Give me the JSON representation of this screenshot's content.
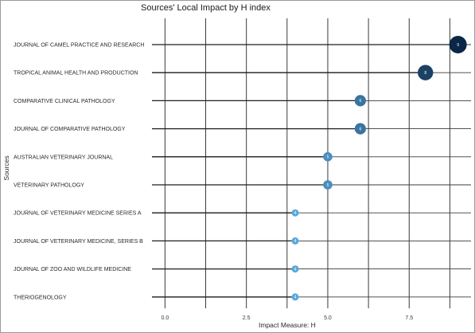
{
  "chart_data": {
    "type": "scatter",
    "title": "Sources' Local Impact by H index",
    "xlabel": "Impact Measure: H",
    "ylabel": "Sources",
    "xlim": [
      -0.4,
      9.4
    ],
    "xticks": [
      0.0,
      2.5,
      5.0,
      7.5
    ],
    "xtick_labels": [
      "0.0",
      "2.5",
      "5.0",
      "7.5"
    ],
    "grid": true,
    "categories": [
      "JOURNAL OF CAMEL PRACTICE AND RESEARCH",
      "TROPICAL ANIMAL HEALTH AND PRODUCTION",
      "COMPARATIVE CLINICAL PATHOLOGY",
      "JOURNAL OF COMPARATIVE PATHOLOGY",
      "AUSTRALIAN VETERINARY JOURNAL",
      "VETERINARY PATHOLOGY",
      "JOURNAL OF VETERINARY MEDICINE SERIES A",
      "JOURNAL OF VETERINARY MEDICINE, SERIES B",
      "JOURNAL OF ZOO AND WILDLIFE MEDICINE",
      "THERIOGENOLOGY"
    ],
    "values": [
      9,
      8,
      6,
      6,
      5,
      5,
      4,
      4,
      4,
      4
    ],
    "point_labels": [
      "9",
      "8",
      "6",
      "6",
      "5",
      "5",
      "4",
      "4",
      "4",
      "4"
    ],
    "colors": {
      "gridline": "#3a3a3a",
      "segment": "#1f1f1f",
      "point_low": "#5aa8dc",
      "point_high": "#0b2747"
    }
  }
}
